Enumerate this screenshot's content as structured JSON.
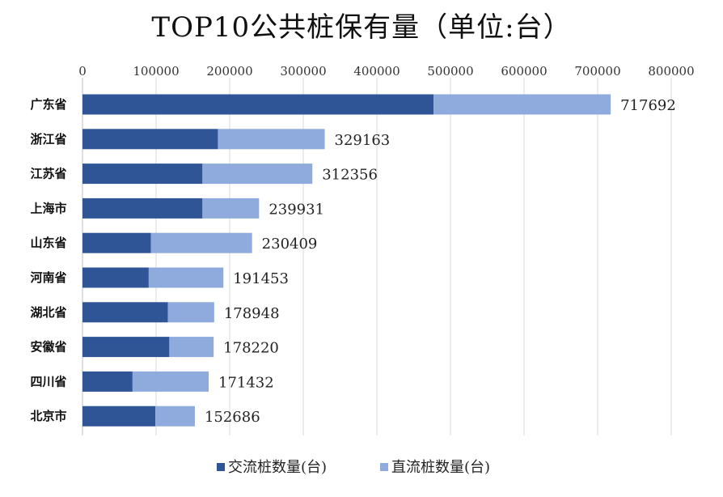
{
  "chart_data": {
    "type": "bar",
    "orientation": "horizontal",
    "stacked": true,
    "title": "TOP10公共桩保有量（单位:台）",
    "categories": [
      "广东省",
      "浙江省",
      "江苏省",
      "上海市",
      "山东省",
      "河南省",
      "湖北省",
      "安徽省",
      "四川省",
      "北京市"
    ],
    "series": [
      {
        "name": "交流桩数量(台)",
        "color": "#2f5597",
        "values": [
          477000,
          184000,
          163000,
          163000,
          93000,
          90000,
          116000,
          118000,
          68000,
          99000
        ]
      },
      {
        "name": "直流桩数量(台)",
        "color": "#8faadc",
        "values": [
          240692,
          145163,
          149356,
          76931,
          137409,
          101453,
          62948,
          60220,
          103432,
          53686
        ]
      }
    ],
    "totals": [
      "717692",
      "329163",
      "312356",
      "239931",
      "230409",
      "191453",
      "178948",
      "178220",
      "171432",
      "152686"
    ],
    "xlim": [
      0,
      800000
    ],
    "xticks": [
      "0",
      "100000",
      "200000",
      "300000",
      "400000",
      "500000",
      "600000",
      "700000",
      "800000"
    ],
    "xaxis_position": "top",
    "grid": true,
    "legend_position": "bottom"
  }
}
